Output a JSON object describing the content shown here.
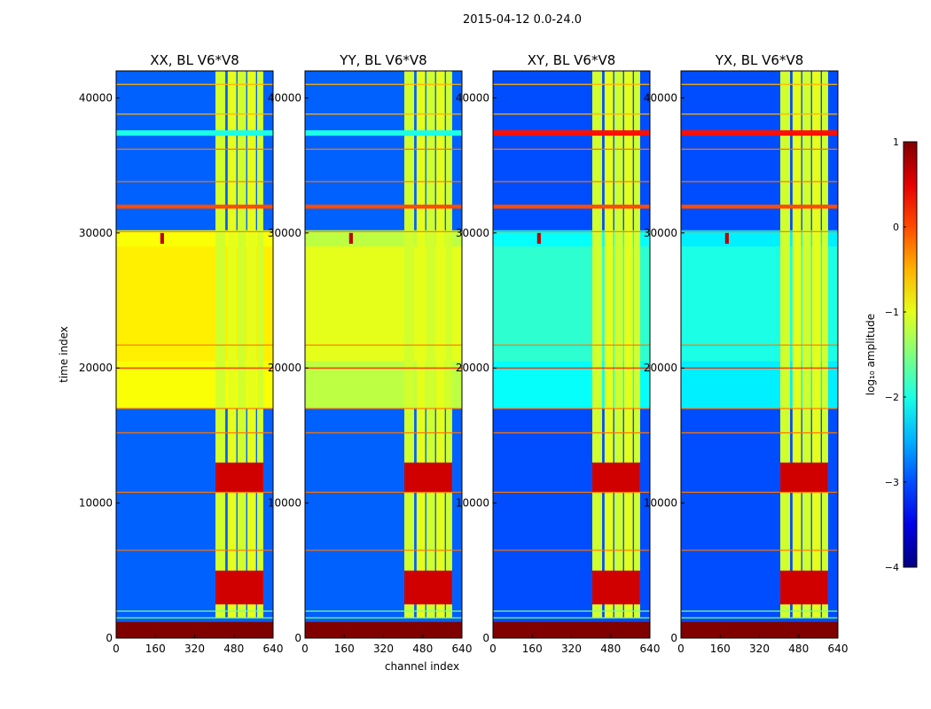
{
  "figure": {
    "suptitle": "2015-04-12 0.0-24.0",
    "xlabel": "channel index",
    "ylabel": "time index",
    "colorbar_label": "log₁₀ amplitude",
    "colorbar_ticks": [
      "1",
      "0",
      "−1",
      "−2",
      "−3",
      "−4"
    ]
  },
  "chart_data": [
    {
      "type": "heatmap",
      "title": "XX, BL V6*V8",
      "xlabel": "channel index",
      "ylabel": "time index",
      "xlim": [
        0,
        640
      ],
      "ylim": [
        0,
        42000
      ],
      "x_ticks": [
        "0",
        "160",
        "320",
        "480",
        "640"
      ],
      "y_ticks": [
        "0",
        "10000",
        "20000",
        "30000",
        "40000"
      ],
      "colorscale": {
        "name": "jet",
        "zmin": -4,
        "zmax": 1
      },
      "background_level": -2.9,
      "bands": [
        {
          "t0": 17000,
          "t1": 30200,
          "c0": 0,
          "c1": 640,
          "value": -0.9
        },
        {
          "t0": 20500,
          "t1": 29000,
          "c0": 0,
          "c1": 640,
          "value": -0.8
        },
        {
          "t0": 1500,
          "t1": 42000,
          "c0": 405,
          "c1": 445,
          "value": -1.1
        },
        {
          "t0": 1500,
          "t1": 42000,
          "c0": 455,
          "c1": 490,
          "value": -1.0
        },
        {
          "t0": 1500,
          "t1": 42000,
          "c0": 495,
          "c1": 530,
          "value": -1.1
        },
        {
          "t0": 1500,
          "t1": 42000,
          "c0": 535,
          "c1": 570,
          "value": -1.0
        },
        {
          "t0": 1500,
          "t1": 42000,
          "c0": 575,
          "c1": 600,
          "value": -1.1
        },
        {
          "t0": 2500,
          "t1": 5000,
          "c0": 405,
          "c1": 600,
          "value": 0.6
        },
        {
          "t0": 10800,
          "t1": 13000,
          "c0": 405,
          "c1": 600,
          "value": 0.6
        },
        {
          "t0": 0,
          "t1": 1200,
          "c0": 0,
          "c1": 640,
          "value": 1.0
        },
        {
          "t0": 37200,
          "t1": 37600,
          "c0": 0,
          "c1": 640,
          "value": -2.0
        },
        {
          "t0": 31800,
          "t1": 32100,
          "c0": 0,
          "c1": 640,
          "value": 0.0
        },
        {
          "t0": 29200,
          "t1": 30000,
          "c0": 180,
          "c1": 195,
          "value": 0.7
        }
      ],
      "hlines": [
        {
          "t": 1500,
          "value": -1.5
        },
        {
          "t": 2000,
          "value": -1.5
        },
        {
          "t": 6500,
          "value": -0.2
        },
        {
          "t": 10800,
          "value": -0.2
        },
        {
          "t": 15200,
          "value": -0.2
        },
        {
          "t": 17000,
          "value": -0.2
        },
        {
          "t": 20000,
          "value": 0.2
        },
        {
          "t": 21700,
          "value": -0.2
        },
        {
          "t": 30100,
          "value": -0.2
        },
        {
          "t": 33800,
          "value": -0.2
        },
        {
          "t": 36200,
          "value": -0.2
        },
        {
          "t": 38800,
          "value": -0.5
        },
        {
          "t": 41000,
          "value": -0.5
        }
      ]
    },
    {
      "type": "heatmap",
      "title": "YY, BL V6*V8",
      "xlabel": "channel index",
      "ylabel": "",
      "xlim": [
        0,
        640
      ],
      "ylim": [
        0,
        42000
      ],
      "x_ticks": [
        "0",
        "160",
        "320",
        "480",
        "640"
      ],
      "y_ticks": [
        "0",
        "10000",
        "20000",
        "30000",
        "40000"
      ],
      "colorscale": {
        "name": "jet",
        "zmin": -4,
        "zmax": 1
      },
      "background_level": -2.9,
      "bands": [
        {
          "t0": 17000,
          "t1": 30200,
          "c0": 0,
          "c1": 640,
          "value": -1.2
        },
        {
          "t0": 20500,
          "t1": 29000,
          "c0": 0,
          "c1": 640,
          "value": -1.0
        },
        {
          "t0": 1500,
          "t1": 42000,
          "c0": 405,
          "c1": 445,
          "value": -1.1
        },
        {
          "t0": 1500,
          "t1": 42000,
          "c0": 455,
          "c1": 490,
          "value": -1.0
        },
        {
          "t0": 1500,
          "t1": 42000,
          "c0": 495,
          "c1": 530,
          "value": -1.1
        },
        {
          "t0": 1500,
          "t1": 42000,
          "c0": 535,
          "c1": 570,
          "value": -1.0
        },
        {
          "t0": 1500,
          "t1": 42000,
          "c0": 575,
          "c1": 600,
          "value": -1.1
        },
        {
          "t0": 2500,
          "t1": 5000,
          "c0": 405,
          "c1": 600,
          "value": 0.6
        },
        {
          "t0": 10800,
          "t1": 13000,
          "c0": 405,
          "c1": 600,
          "value": 0.6
        },
        {
          "t0": 0,
          "t1": 1200,
          "c0": 0,
          "c1": 640,
          "value": 1.0
        },
        {
          "t0": 37200,
          "t1": 37600,
          "c0": 0,
          "c1": 640,
          "value": -2.0
        },
        {
          "t0": 31800,
          "t1": 32100,
          "c0": 0,
          "c1": 640,
          "value": 0.0
        },
        {
          "t0": 29200,
          "t1": 30000,
          "c0": 180,
          "c1": 195,
          "value": 0.7
        }
      ],
      "hlines": [
        {
          "t": 1500,
          "value": -1.5
        },
        {
          "t": 2000,
          "value": -1.5
        },
        {
          "t": 6500,
          "value": -0.2
        },
        {
          "t": 10800,
          "value": -0.2
        },
        {
          "t": 15200,
          "value": -0.2
        },
        {
          "t": 17000,
          "value": -0.2
        },
        {
          "t": 20000,
          "value": 0.2
        },
        {
          "t": 21700,
          "value": -0.2
        },
        {
          "t": 30100,
          "value": -0.2
        },
        {
          "t": 33800,
          "value": -0.2
        },
        {
          "t": 36200,
          "value": -0.2
        },
        {
          "t": 38800,
          "value": -0.5
        },
        {
          "t": 41000,
          "value": -0.5
        }
      ]
    },
    {
      "type": "heatmap",
      "title": "XY, BL V6*V8",
      "xlabel": "channel index",
      "ylabel": "",
      "xlim": [
        0,
        640
      ],
      "ylim": [
        0,
        42000
      ],
      "x_ticks": [
        "0",
        "160",
        "320",
        "480",
        "640"
      ],
      "y_ticks": [
        "0",
        "10000",
        "20000",
        "30000",
        "40000"
      ],
      "colorscale": {
        "name": "jet",
        "zmin": -4,
        "zmax": 1
      },
      "background_level": -3.0,
      "bands": [
        {
          "t0": 17000,
          "t1": 30200,
          "c0": 0,
          "c1": 640,
          "value": -2.1
        },
        {
          "t0": 20500,
          "t1": 29000,
          "c0": 0,
          "c1": 640,
          "value": -1.9
        },
        {
          "t0": 1500,
          "t1": 42000,
          "c0": 405,
          "c1": 445,
          "value": -1.1
        },
        {
          "t0": 1500,
          "t1": 42000,
          "c0": 455,
          "c1": 490,
          "value": -1.0
        },
        {
          "t0": 1500,
          "t1": 42000,
          "c0": 495,
          "c1": 530,
          "value": -1.1
        },
        {
          "t0": 1500,
          "t1": 42000,
          "c0": 535,
          "c1": 570,
          "value": -1.0
        },
        {
          "t0": 1500,
          "t1": 42000,
          "c0": 575,
          "c1": 600,
          "value": -1.1
        },
        {
          "t0": 2500,
          "t1": 5000,
          "c0": 405,
          "c1": 600,
          "value": 0.6
        },
        {
          "t0": 10800,
          "t1": 13000,
          "c0": 405,
          "c1": 600,
          "value": 0.6
        },
        {
          "t0": 0,
          "t1": 1200,
          "c0": 0,
          "c1": 640,
          "value": 1.0
        },
        {
          "t0": 37200,
          "t1": 37600,
          "c0": 0,
          "c1": 640,
          "value": 0.3
        },
        {
          "t0": 31800,
          "t1": 32100,
          "c0": 0,
          "c1": 640,
          "value": 0.0
        },
        {
          "t0": 29200,
          "t1": 30000,
          "c0": 180,
          "c1": 195,
          "value": 0.7
        }
      ],
      "hlines": [
        {
          "t": 1500,
          "value": -1.5
        },
        {
          "t": 2000,
          "value": -1.5
        },
        {
          "t": 6500,
          "value": -0.2
        },
        {
          "t": 10800,
          "value": -0.2
        },
        {
          "t": 15200,
          "value": -0.2
        },
        {
          "t": 17000,
          "value": -0.2
        },
        {
          "t": 20000,
          "value": 0.2
        },
        {
          "t": 21700,
          "value": -0.2
        },
        {
          "t": 30100,
          "value": -0.2
        },
        {
          "t": 33800,
          "value": -0.2
        },
        {
          "t": 36200,
          "value": -0.2
        },
        {
          "t": 38800,
          "value": -0.5
        },
        {
          "t": 41000,
          "value": -0.5
        }
      ]
    },
    {
      "type": "heatmap",
      "title": "YX, BL V6*V8",
      "xlabel": "channel index",
      "ylabel": "",
      "xlim": [
        0,
        640
      ],
      "ylim": [
        0,
        42000
      ],
      "x_ticks": [
        "0",
        "160",
        "320",
        "480",
        "640"
      ],
      "y_ticks": [
        "0",
        "10000",
        "20000",
        "30000",
        "40000"
      ],
      "colorscale": {
        "name": "jet",
        "zmin": -4,
        "zmax": 1
      },
      "background_level": -3.0,
      "bands": [
        {
          "t0": 17000,
          "t1": 30200,
          "c0": 0,
          "c1": 640,
          "value": -2.2
        },
        {
          "t0": 20500,
          "t1": 29000,
          "c0": 0,
          "c1": 640,
          "value": -2.0
        },
        {
          "t0": 1500,
          "t1": 42000,
          "c0": 405,
          "c1": 445,
          "value": -1.1
        },
        {
          "t0": 1500,
          "t1": 42000,
          "c0": 455,
          "c1": 490,
          "value": -1.0
        },
        {
          "t0": 1500,
          "t1": 42000,
          "c0": 495,
          "c1": 530,
          "value": -1.1
        },
        {
          "t0": 1500,
          "t1": 42000,
          "c0": 535,
          "c1": 570,
          "value": -1.0
        },
        {
          "t0": 1500,
          "t1": 42000,
          "c0": 575,
          "c1": 600,
          "value": -1.1
        },
        {
          "t0": 2500,
          "t1": 5000,
          "c0": 405,
          "c1": 600,
          "value": 0.6
        },
        {
          "t0": 10800,
          "t1": 13000,
          "c0": 405,
          "c1": 600,
          "value": 0.6
        },
        {
          "t0": 0,
          "t1": 1200,
          "c0": 0,
          "c1": 640,
          "value": 1.0
        },
        {
          "t0": 37200,
          "t1": 37600,
          "c0": 0,
          "c1": 640,
          "value": 0.3
        },
        {
          "t0": 31800,
          "t1": 32100,
          "c0": 0,
          "c1": 640,
          "value": 0.0
        },
        {
          "t0": 29200,
          "t1": 30000,
          "c0": 180,
          "c1": 195,
          "value": 0.7
        }
      ],
      "hlines": [
        {
          "t": 1500,
          "value": -1.5
        },
        {
          "t": 2000,
          "value": -1.5
        },
        {
          "t": 6500,
          "value": -0.2
        },
        {
          "t": 10800,
          "value": -0.2
        },
        {
          "t": 15200,
          "value": -0.2
        },
        {
          "t": 17000,
          "value": -0.2
        },
        {
          "t": 20000,
          "value": 0.2
        },
        {
          "t": 21700,
          "value": -0.2
        },
        {
          "t": 30100,
          "value": -0.2
        },
        {
          "t": 33800,
          "value": -0.2
        },
        {
          "t": 36200,
          "value": -0.2
        },
        {
          "t": 38800,
          "value": -0.5
        },
        {
          "t": 41000,
          "value": -0.5
        }
      ]
    }
  ]
}
